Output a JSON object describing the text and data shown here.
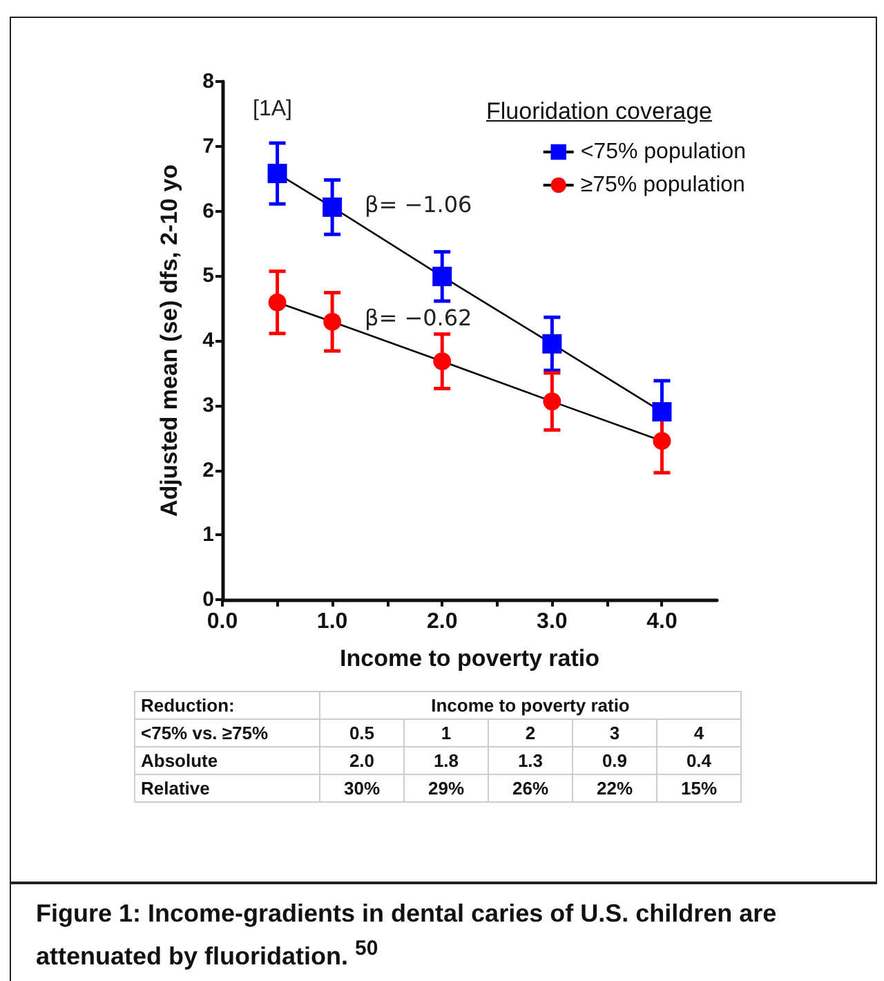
{
  "chart_data": {
    "type": "line",
    "xlabel": "Income to poverty ratio",
    "ylabel": "Adjusted mean (se) dfs, 2-10 yo",
    "legend_title": "Fluoridation coverage",
    "legend": "top right",
    "x": [
      0.5,
      1.0,
      2.0,
      3.0,
      4.0
    ],
    "xlim": [
      0,
      4.5
    ],
    "xticks": [
      {
        "value": 0,
        "label": "0.0"
      },
      {
        "value": 0.5,
        "label": null
      },
      {
        "value": 1,
        "label": "1.0"
      },
      {
        "value": 1.5,
        "label": null
      },
      {
        "value": 2,
        "label": "2.0"
      },
      {
        "value": 2.5,
        "label": null
      },
      {
        "value": 3,
        "label": "3.0"
      },
      {
        "value": 3.5,
        "label": null
      },
      {
        "value": 4,
        "label": "4.0"
      }
    ],
    "ylim": [
      0,
      8
    ],
    "yticks": [
      0,
      1,
      2,
      3,
      4,
      5,
      6,
      7,
      8
    ],
    "grid": false,
    "line_style": "solid",
    "series": [
      {
        "name": "<75% population",
        "color": "#0000ff",
        "marker": "square",
        "values": [
          6.58,
          6.06,
          4.99,
          3.95,
          2.9
        ],
        "errors": [
          0.47,
          0.42,
          0.38,
          0.41,
          0.48
        ]
      },
      {
        "name": "≥75% population",
        "color": "#ff0000",
        "marker": "circle",
        "values": [
          4.59,
          4.29,
          3.68,
          3.06,
          2.45
        ],
        "errors": [
          0.48,
          0.45,
          0.42,
          0.44,
          0.49
        ]
      }
    ],
    "annotations": [
      "[1A]",
      "β= −1.06",
      "β= −0.62",
      "Reduction:",
      "Income to poverty ratio",
      "<75% vs. ≥75%",
      "0.5",
      "1",
      "2",
      "3",
      "4",
      "Absolute",
      "2.0",
      "1.8",
      "1.3",
      "0.9",
      "0.4",
      "Relative",
      "30%",
      "29%",
      "26%",
      "22%",
      "15%",
      "Figure 1: Income-gradients in dental caries of U.S. children are attenuated by fluoridation. $^{50}$"
    ]
  }
}
